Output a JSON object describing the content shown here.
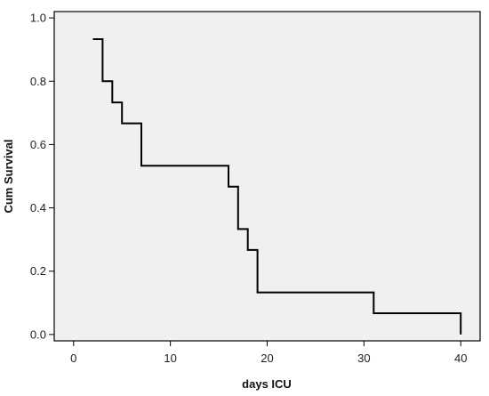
{
  "chart_data": {
    "type": "line",
    "subtype": "kaplan-meier-step",
    "title": "",
    "xlabel": "days ICU",
    "ylabel": "Cum Survival",
    "xlim": [
      -2,
      42
    ],
    "ylim": [
      -0.02,
      1.02
    ],
    "xticks": [
      0,
      10,
      20,
      30,
      40
    ],
    "xtick_labels": [
      "0",
      "10",
      "20",
      "30",
      "40"
    ],
    "yticks": [
      0.0,
      0.2,
      0.4,
      0.6,
      0.8,
      1.0
    ],
    "ytick_labels": [
      "0.0",
      "0.2",
      "0.4",
      "0.6",
      "0.8",
      "1.0"
    ],
    "grid": false,
    "legend": "none",
    "series": [
      {
        "x": [
          2,
          3,
          3,
          4,
          4,
          5,
          5,
          7,
          7,
          16,
          16,
          17,
          17,
          18,
          18,
          19,
          19,
          31,
          31,
          40,
          40
        ],
        "y": [
          0.933,
          0.933,
          0.8,
          0.8,
          0.733,
          0.733,
          0.667,
          0.667,
          0.533,
          0.533,
          0.467,
          0.467,
          0.333,
          0.333,
          0.267,
          0.267,
          0.133,
          0.133,
          0.067,
          0.067,
          0.0
        ]
      }
    ],
    "colors": {
      "background": "#f0f0f0",
      "line": "#000000",
      "frame": "#000000"
    }
  }
}
